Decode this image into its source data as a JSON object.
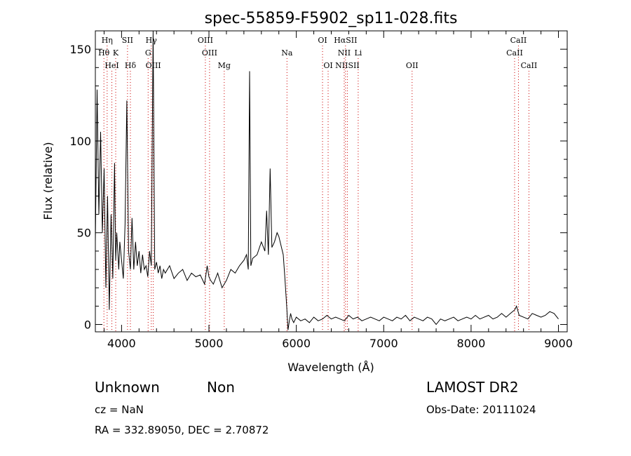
{
  "chart_data": {
    "type": "line",
    "title": "spec-55859-F5902_sp11-028.fits",
    "xlabel": "Wavelength (Å)",
    "ylabel": "Flux (relative)",
    "xlim": [
      3700,
      9100
    ],
    "ylim": [
      -4,
      160
    ],
    "xticks": [
      4000,
      5000,
      6000,
      7000,
      8000,
      9000
    ],
    "yticks": [
      0,
      50,
      100,
      150
    ],
    "grid": false,
    "series": [
      {
        "x": [
          3700,
          3720,
          3740,
          3760,
          3780,
          3800,
          3820,
          3840,
          3860,
          3880,
          3900,
          3920,
          3933,
          3945,
          3968,
          3980,
          4000,
          4020,
          4040,
          4060,
          4080,
          4101,
          4120,
          4140,
          4160,
          4180,
          4200,
          4220,
          4240,
          4260,
          4280,
          4300,
          4320,
          4340,
          4361,
          4380,
          4400,
          4420,
          4440,
          4460,
          4480,
          4500,
          4550,
          4600,
          4650,
          4700,
          4750,
          4800,
          4850,
          4900,
          4950,
          4980,
          5000,
          5020,
          5050,
          5100,
          5150,
          5200,
          5250,
          5300,
          5350,
          5400,
          5430,
          5450,
          5465,
          5480,
          5500,
          5550,
          5600,
          5640,
          5660,
          5680,
          5700,
          5720,
          5750,
          5780,
          5800,
          5820,
          5850,
          5870,
          5890,
          5905,
          5920,
          5935,
          5950,
          5970,
          6000,
          6050,
          6100,
          6150,
          6200,
          6250,
          6300,
          6350,
          6400,
          6450,
          6500,
          6550,
          6600,
          6650,
          6700,
          6750,
          6800,
          6850,
          6900,
          6950,
          7000,
          7050,
          7100,
          7150,
          7200,
          7250,
          7300,
          7350,
          7400,
          7450,
          7500,
          7550,
          7600,
          7650,
          7700,
          7750,
          7800,
          7850,
          7900,
          7950,
          8000,
          8050,
          8100,
          8150,
          8200,
          8250,
          8300,
          8350,
          8400,
          8450,
          8500,
          8520,
          8550,
          8600,
          8650,
          8700,
          8750,
          8800,
          8850,
          8900,
          8950,
          9000
        ],
        "y": [
          45,
          128,
          60,
          105,
          50,
          85,
          20,
          70,
          8,
          60,
          25,
          88,
          35,
          50,
          30,
          45,
          35,
          25,
          55,
          122,
          40,
          30,
          58,
          30,
          45,
          32,
          40,
          28,
          38,
          30,
          32,
          26,
          40,
          32,
          160,
          30,
          34,
          28,
          32,
          25,
          30,
          28,
          32,
          25,
          28,
          30,
          24,
          28,
          26,
          27,
          22,
          32,
          26,
          24,
          22,
          28,
          20,
          24,
          30,
          28,
          32,
          35,
          38,
          30,
          138,
          32,
          36,
          38,
          45,
          40,
          62,
          38,
          85,
          42,
          45,
          50,
          48,
          44,
          38,
          25,
          10,
          -3,
          2,
          6,
          3,
          1,
          4,
          2,
          3,
          1,
          4,
          2,
          3,
          5,
          3,
          4,
          3,
          2,
          5,
          3,
          4,
          2,
          3,
          4,
          3,
          2,
          4,
          3,
          2,
          4,
          3,
          5,
          2,
          4,
          3,
          2,
          4,
          3,
          0,
          3,
          2,
          3,
          4,
          2,
          3,
          4,
          3,
          5,
          3,
          4,
          5,
          3,
          4,
          6,
          4,
          6,
          8,
          10,
          5,
          4,
          3,
          6,
          5,
          4,
          5,
          7,
          6,
          3
        ]
      }
    ],
    "lines": [
      {
        "label": "Hη",
        "row": 0,
        "x": 3835
      },
      {
        "label": "SII",
        "row": 0,
        "x": 4068
      },
      {
        "label": "Hγ",
        "row": 0,
        "x": 4340
      },
      {
        "label": "OIII",
        "row": 0,
        "x": 4959
      },
      {
        "label": "OI",
        "row": 0,
        "x": 6300
      },
      {
        "label": "HαSII",
        "row": 0,
        "x": 6563
      },
      {
        "label": "CaII",
        "row": 0,
        "x": 8542
      },
      {
        "label": "Hθ",
        "row": 1,
        "x": 3798
      },
      {
        "label": "K",
        "row": 1,
        "x": 3933
      },
      {
        "label": "G",
        "row": 1,
        "x": 4304
      },
      {
        "label": "OIII",
        "row": 1,
        "x": 5007
      },
      {
        "label": "Na",
        "row": 1,
        "x": 5893
      },
      {
        "label": "NII",
        "row": 1,
        "x": 6548
      },
      {
        "label": "Li",
        "row": 1,
        "x": 6708
      },
      {
        "label": "CaII",
        "row": 1,
        "x": 8498
      },
      {
        "label": "HeI",
        "row": 2,
        "x": 3889
      },
      {
        "label": "Hδ",
        "row": 2,
        "x": 4101
      },
      {
        "label": "OIII",
        "row": 2,
        "x": 4363
      },
      {
        "label": "Mg",
        "row": 2,
        "x": 5175
      },
      {
        "label": "OI",
        "row": 2,
        "x": 6364
      },
      {
        "label": "NIISII",
        "row": 2,
        "x": 6584
      },
      {
        "label": "OII",
        "row": 2,
        "x": 7325
      },
      {
        "label": "CaII",
        "row": 2,
        "x": 8662
      }
    ],
    "line_marker_color": "#cc0000"
  },
  "footer": {
    "class_label": "Unknown",
    "subclass_label": "Non",
    "survey": "LAMOST DR2",
    "cz": "cz = NaN",
    "obs_date": "Obs-Date: 20111024",
    "coords": "RA = 332.89050, DEC =   2.70872"
  }
}
